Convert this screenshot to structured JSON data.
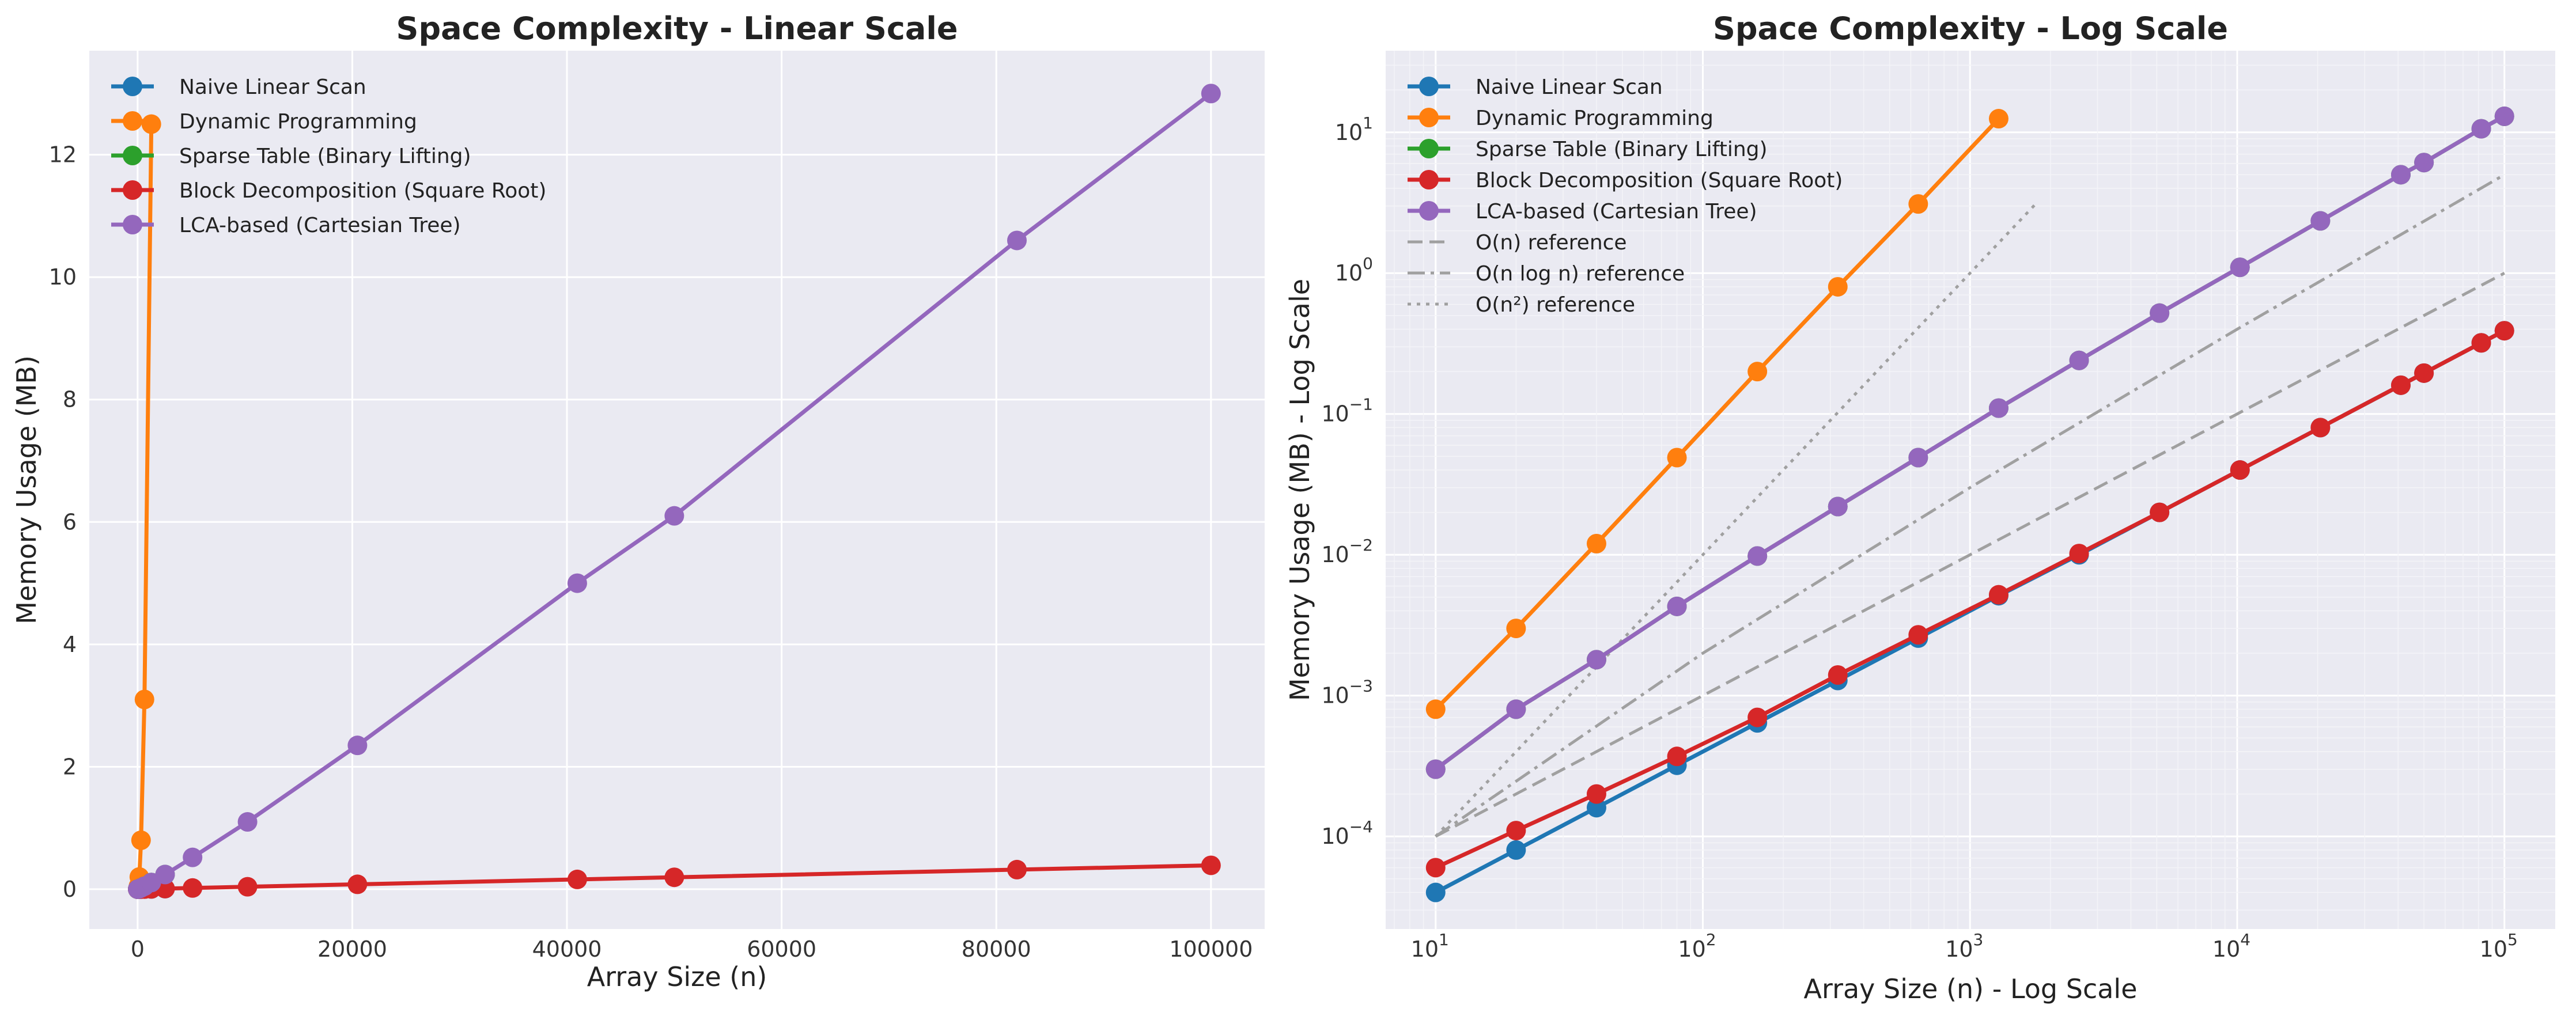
{
  "chart_data": [
    {
      "type": "line",
      "title": "Space Complexity - Linear Scale",
      "xlabel": "Array Size (n)",
      "ylabel": "Memory Usage (MB)",
      "xscale": "linear",
      "yscale": "linear",
      "xlim": [
        -4500,
        105000
      ],
      "ylim": [
        -0.65,
        13.7
      ],
      "xticks": [
        0,
        20000,
        40000,
        60000,
        80000,
        100000
      ],
      "xtick_labels": [
        "0",
        "20000",
        "40000",
        "60000",
        "80000",
        "100000"
      ],
      "yticks": [
        0,
        2,
        4,
        6,
        8,
        10,
        12
      ],
      "ytick_labels": [
        "0",
        "2",
        "4",
        "6",
        "8",
        "10",
        "12"
      ],
      "grid": true,
      "legend_position": "top-left",
      "series": [
        {
          "name": "Naive Linear Scan",
          "color": "#1f77b4",
          "x": [
            10,
            20,
            40,
            80,
            160,
            320,
            640,
            1280,
            2560
          ],
          "y": [
            4e-05,
            8e-05,
            0.00016,
            0.00032,
            0.00064,
            0.00128,
            0.00256,
            0.00512,
            0.01
          ]
        },
        {
          "name": "Dynamic Programming",
          "color": "#ff7f0e",
          "x": [
            10,
            20,
            40,
            80,
            160,
            320,
            640,
            1280
          ],
          "y": [
            0.0008,
            0.003,
            0.012,
            0.049,
            0.2,
            0.8,
            3.1,
            12.5
          ]
        },
        {
          "name": "Sparse Table (Binary Lifting)",
          "color": "#2ca02c",
          "x": [
            10,
            20,
            40,
            80,
            160,
            320,
            640,
            1280,
            2560
          ],
          "y": [
            0.0003,
            0.0008,
            0.0018,
            0.0043,
            0.0098,
            0.022,
            0.049,
            0.11,
            0.24
          ]
        },
        {
          "name": "Block Decomposition (Square Root)",
          "color": "#d62728",
          "x": [
            10,
            20,
            40,
            80,
            160,
            320,
            640,
            1280,
            2560,
            5120,
            10240,
            20480,
            40960,
            50000,
            81920,
            100000
          ],
          "y": [
            6e-05,
            0.00011,
            0.0002,
            0.00037,
            0.0007,
            0.0014,
            0.0027,
            0.0052,
            0.0102,
            0.02,
            0.04,
            0.08,
            0.16,
            0.195,
            0.32,
            0.39
          ]
        },
        {
          "name": "LCA-based (Cartesian Tree)",
          "color": "#9467bd",
          "x": [
            10,
            20,
            40,
            80,
            160,
            320,
            640,
            1280,
            2560,
            5120,
            10240,
            20480,
            40960,
            50000,
            81920,
            100000
          ],
          "y": [
            0.0003,
            0.0008,
            0.0018,
            0.0043,
            0.0098,
            0.022,
            0.049,
            0.11,
            0.24,
            0.52,
            1.1,
            2.35,
            5.0,
            6.1,
            10.6,
            13.0
          ]
        }
      ]
    },
    {
      "type": "line",
      "title": "Space Complexity - Log Scale",
      "xlabel": "Array Size (n) - Log Scale",
      "ylabel": "Memory Usage (MB) - Log Scale",
      "xscale": "log",
      "yscale": "log",
      "xlim": [
        6.5,
        155000
      ],
      "ylim": [
        2.2e-05,
        38
      ],
      "xticks": [
        10,
        100,
        1000,
        10000,
        100000
      ],
      "xtick_labels": [
        {
          "base": "10",
          "exp": "1"
        },
        {
          "base": "10",
          "exp": "2"
        },
        {
          "base": "10",
          "exp": "3"
        },
        {
          "base": "10",
          "exp": "4"
        },
        {
          "base": "10",
          "exp": "5"
        }
      ],
      "yticks": [
        0.0001,
        0.001,
        0.01,
        0.1,
        1,
        10
      ],
      "ytick_labels": [
        {
          "base": "10",
          "exp": "−4"
        },
        {
          "base": "10",
          "exp": "−3"
        },
        {
          "base": "10",
          "exp": "−2"
        },
        {
          "base": "10",
          "exp": "−1"
        },
        {
          "base": "10",
          "exp": "0"
        },
        {
          "base": "10",
          "exp": "1"
        }
      ],
      "grid": true,
      "legend_position": "top-left",
      "series": [
        {
          "name": "Naive Linear Scan",
          "color": "#1f77b4",
          "x": [
            10,
            20,
            40,
            80,
            160,
            320,
            640,
            1280,
            2560,
            5120,
            10240,
            20480,
            40960,
            50000,
            81920,
            100000
          ],
          "y": [
            4e-05,
            8e-05,
            0.00016,
            0.00032,
            0.00064,
            0.00128,
            0.00256,
            0.00512,
            0.01,
            0.02,
            0.04,
            0.08,
            0.16,
            0.195,
            0.32,
            0.39
          ]
        },
        {
          "name": "Dynamic Programming",
          "color": "#ff7f0e",
          "x": [
            10,
            20,
            40,
            80,
            160,
            320,
            640,
            1280
          ],
          "y": [
            0.0008,
            0.003,
            0.012,
            0.049,
            0.2,
            0.8,
            3.1,
            12.5
          ]
        },
        {
          "name": "Sparse Table (Binary Lifting)",
          "color": "#2ca02c",
          "x": [
            10,
            20,
            40,
            80,
            160,
            320,
            640,
            1280,
            2560,
            5120,
            10240,
            20480,
            40960,
            50000,
            81920,
            100000
          ],
          "y": [
            0.0003,
            0.0008,
            0.0018,
            0.0043,
            0.0098,
            0.022,
            0.049,
            0.11,
            0.24,
            0.52,
            1.1,
            2.35,
            5.0,
            6.1,
            10.6,
            13.0
          ]
        },
        {
          "name": "Block Decomposition (Square Root)",
          "color": "#d62728",
          "x": [
            10,
            20,
            40,
            80,
            160,
            320,
            640,
            1280,
            2560,
            5120,
            10240,
            20480,
            40960,
            50000,
            81920,
            100000
          ],
          "y": [
            6e-05,
            0.00011,
            0.0002,
            0.00037,
            0.0007,
            0.0014,
            0.0027,
            0.0052,
            0.0102,
            0.02,
            0.04,
            0.08,
            0.16,
            0.195,
            0.32,
            0.39
          ]
        },
        {
          "name": "LCA-based (Cartesian Tree)",
          "color": "#9467bd",
          "x": [
            10,
            20,
            40,
            80,
            160,
            320,
            640,
            1280,
            2560,
            5120,
            10240,
            20480,
            40960,
            50000,
            81920,
            100000
          ],
          "y": [
            0.0003,
            0.0008,
            0.0018,
            0.0043,
            0.0098,
            0.022,
            0.049,
            0.11,
            0.24,
            0.52,
            1.1,
            2.35,
            5.0,
            6.1,
            10.6,
            13.0
          ]
        }
      ],
      "reference_lines": [
        {
          "name": "O(n) reference",
          "style": "dashed",
          "color": "#a0a0a0",
          "x": [
            10,
            100000
          ],
          "y": [
            0.0001,
            1.0
          ]
        },
        {
          "name": "O(n log n) reference",
          "style": "dashdot",
          "color": "#a0a0a0",
          "x": [
            10,
            100,
            1000,
            10000,
            100000
          ],
          "y": [
            0.0001,
            0.002,
            0.03,
            0.4,
            5.0
          ]
        },
        {
          "name": "O(n²) reference",
          "style": "dotted",
          "color": "#a0a0a0",
          "x": [
            10,
            1800
          ],
          "y": [
            0.0001,
            3.24
          ]
        }
      ]
    }
  ]
}
